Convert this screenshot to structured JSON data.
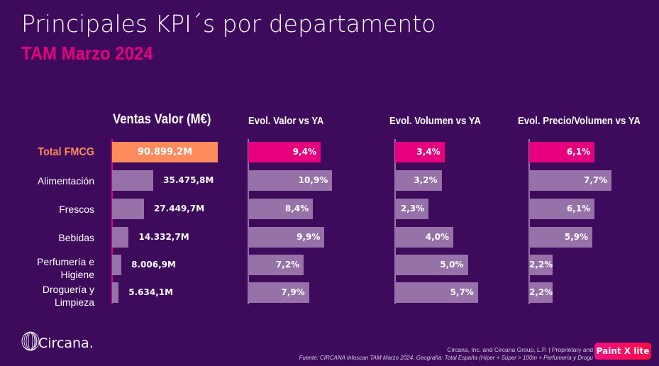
{
  "header": {
    "title": "Principales KPI´s por departamento",
    "subtitle": "TAM Marzo 2024"
  },
  "colors": {
    "background": "#3d0a5c",
    "total_sales_bar": "#ff8a5b",
    "total_evol_bar": "#e6007e",
    "category_bar": "#9672a8",
    "axis_sales": "#e6007e",
    "axis_evol": "#9672a8",
    "subtitle": "#e6007e"
  },
  "chart_data": [
    {
      "type": "bar",
      "orientation": "horizontal",
      "title": "Ventas Valor (M€)",
      "categories": [
        "Total FMCG",
        "Alimentación",
        "Frescos",
        "Bebidas",
        "Perfumería e Higiene",
        "Droguería y Limpieza"
      ],
      "values": [
        90899.2,
        35475.8,
        27449.7,
        14332.7,
        8006.9,
        5634.1
      ],
      "labels": [
        "90.899,2M",
        "35.475,8M",
        "27.449,7M",
        "14.332,7M",
        "8.006,9M",
        "5.634,1M"
      ],
      "xlabel": "",
      "ylabel": ""
    },
    {
      "type": "bar",
      "orientation": "horizontal",
      "title": "Evol. Valor vs YA",
      "categories": [
        "Total FMCG",
        "Alimentación",
        "Frescos",
        "Bebidas",
        "Perfumería e Higiene",
        "Droguería y Limpieza"
      ],
      "values": [
        9.4,
        10.9,
        8.4,
        9.9,
        7.2,
        7.9
      ],
      "labels": [
        "9,4%",
        "10,9%",
        "8,4%",
        "9,9%",
        "7,2%",
        "7,9%"
      ],
      "unit": "%"
    },
    {
      "type": "bar",
      "orientation": "horizontal",
      "title": "Evol. Volumen vs YA",
      "categories": [
        "Total FMCG",
        "Alimentación",
        "Frescos",
        "Bebidas",
        "Perfumería e Higiene",
        "Droguería y Limpieza"
      ],
      "values": [
        3.4,
        3.2,
        2.3,
        4.0,
        5.0,
        5.7
      ],
      "labels": [
        "3,4%",
        "3,2%",
        "2,3%",
        "4,0%",
        "5,0%",
        "5,7%"
      ],
      "unit": "%"
    },
    {
      "type": "bar",
      "orientation": "horizontal",
      "title": "Evol. Precio/Volumen vs YA",
      "categories": [
        "Total FMCG",
        "Alimentación",
        "Frescos",
        "Bebidas",
        "Perfumería e Higiene",
        "Droguería y Limpieza"
      ],
      "values": [
        6.1,
        7.7,
        6.1,
        5.9,
        2.2,
        2.2
      ],
      "labels": [
        "6,1%",
        "7,7%",
        "6,1%",
        "5,9%",
        "2,2%",
        "2,2%"
      ],
      "unit": "%"
    }
  ],
  "row_labels": [
    [
      "Total FMCG"
    ],
    [
      "Alimentación"
    ],
    [
      "Frescos"
    ],
    [
      "Bebidas"
    ],
    [
      "Perfumería e",
      "Higiene"
    ],
    [
      "Droguería y",
      "Limpieza"
    ]
  ],
  "footer": {
    "logo_text": "Circana.",
    "logo_icon": "globe-wireframe-icon",
    "copyright": "Circana, Inc. and Circana Group, L.P. |  Proprietary and",
    "source": "Fuente: CIRCANA Infoscan TAM Marzo 2024. Geografía: Total España (Híper + Súper > 100m + Perfumería y Drogu",
    "badge": "Paint X lite"
  }
}
